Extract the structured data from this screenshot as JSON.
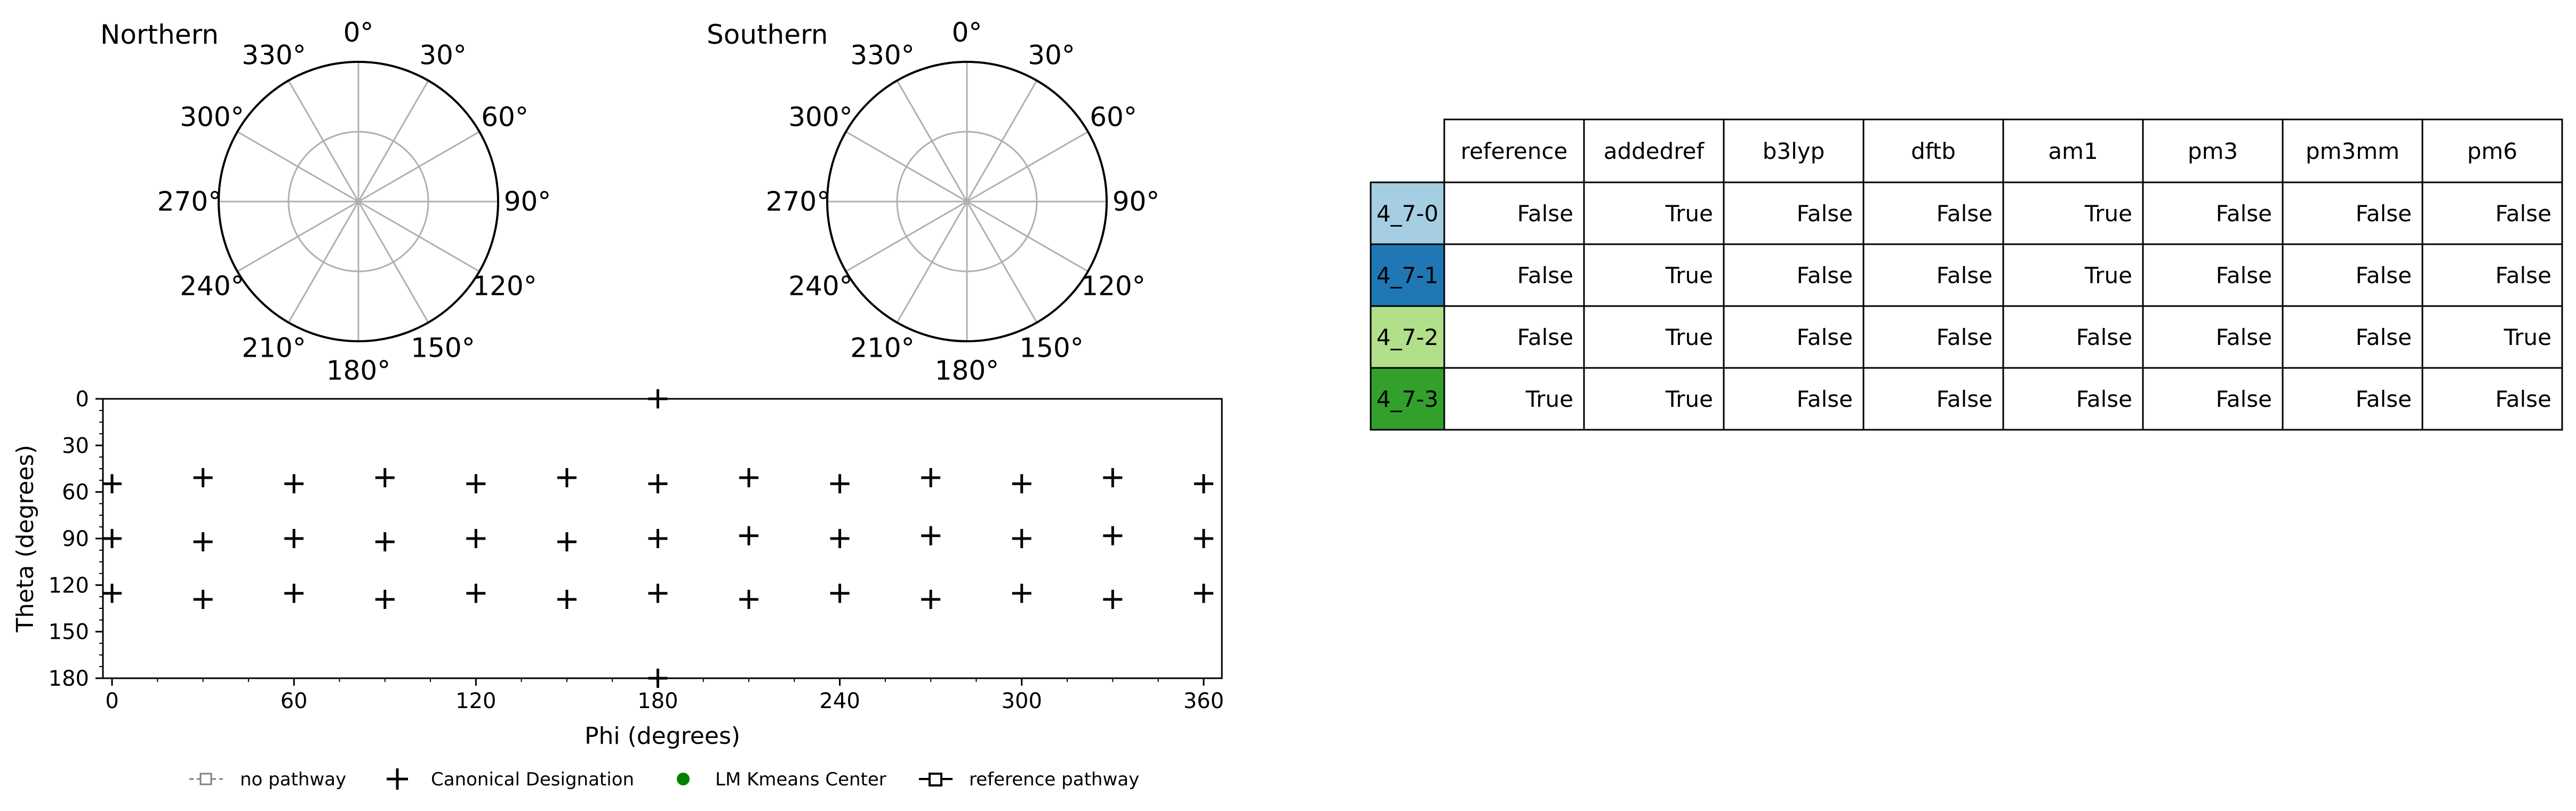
{
  "chart_data": [
    {
      "type": "polar",
      "title": "Northern",
      "angle_labels": [
        "0°",
        "30°",
        "60°",
        "90°",
        "120°",
        "150°",
        "180°",
        "210°",
        "240°",
        "270°",
        "300°",
        "330°"
      ],
      "rings": [
        0.5,
        1.0
      ],
      "points": []
    },
    {
      "type": "polar",
      "title": "Southern",
      "angle_labels": [
        "0°",
        "30°",
        "60°",
        "90°",
        "120°",
        "150°",
        "180°",
        "210°",
        "240°",
        "270°",
        "300°",
        "330°"
      ],
      "rings": [
        0.5,
        1.0
      ],
      "points": []
    },
    {
      "type": "scatter",
      "xlabel": "Phi (degrees)",
      "ylabel": "Theta (degrees)",
      "xlim": [
        -3,
        366
      ],
      "ylim": [
        0,
        180
      ],
      "y_inverted": true,
      "x_ticks": [
        0,
        60,
        120,
        180,
        240,
        300,
        360
      ],
      "y_ticks": [
        0,
        30,
        60,
        90,
        120,
        150,
        180
      ],
      "series": [
        {
          "name": "Canonical Designation",
          "marker": "plus",
          "points": [
            [
              180,
              0
            ],
            [
              180,
              180
            ],
            [
              0,
              54.7
            ],
            [
              30,
              50.8
            ],
            [
              60,
              54.7
            ],
            [
              90,
              50.8
            ],
            [
              120,
              54.7
            ],
            [
              150,
              50.8
            ],
            [
              180,
              54.7
            ],
            [
              210,
              50.8
            ],
            [
              240,
              54.7
            ],
            [
              270,
              50.8
            ],
            [
              300,
              54.7
            ],
            [
              330,
              50.8
            ],
            [
              360,
              54.7
            ],
            [
              0,
              90
            ],
            [
              30,
              92.1
            ],
            [
              60,
              90
            ],
            [
              90,
              92.1
            ],
            [
              120,
              90
            ],
            [
              150,
              92.1
            ],
            [
              180,
              90
            ],
            [
              210,
              88.2
            ],
            [
              240,
              90
            ],
            [
              270,
              88.2
            ],
            [
              300,
              90
            ],
            [
              330,
              88.2
            ],
            [
              360,
              90
            ],
            [
              0,
              125.3
            ],
            [
              30,
              129.2
            ],
            [
              60,
              125.3
            ],
            [
              90,
              129.2
            ],
            [
              120,
              125.3
            ],
            [
              150,
              129.2
            ],
            [
              180,
              125.3
            ],
            [
              210,
              129.2
            ],
            [
              240,
              125.3
            ],
            [
              270,
              129.2
            ],
            [
              300,
              125.3
            ],
            [
              330,
              129.2
            ],
            [
              360,
              125.3
            ]
          ]
        }
      ]
    },
    {
      "type": "table",
      "columns": [
        "reference",
        "addedref",
        "b3lyp",
        "dftb",
        "am1",
        "pm3",
        "pm3mm",
        "pm6"
      ],
      "rows": [
        {
          "label": "4_7-0",
          "color": "#a6cee3",
          "values": [
            "False",
            "True",
            "False",
            "False",
            "True",
            "False",
            "False",
            "False"
          ]
        },
        {
          "label": "4_7-1",
          "color": "#1f78b4",
          "values": [
            "False",
            "True",
            "False",
            "False",
            "True",
            "False",
            "False",
            "False"
          ]
        },
        {
          "label": "4_7-2",
          "color": "#b2df8a",
          "values": [
            "False",
            "True",
            "False",
            "False",
            "False",
            "False",
            "False",
            "True"
          ]
        },
        {
          "label": "4_7-3",
          "color": "#33a02c",
          "values": [
            "True",
            "True",
            "False",
            "False",
            "False",
            "False",
            "False",
            "False"
          ]
        }
      ]
    }
  ],
  "legend": {
    "placement": "bottom",
    "items": [
      {
        "label": "no pathway",
        "marker": "dashed-square",
        "color": "#808080"
      },
      {
        "label": "Canonical Designation",
        "marker": "plus",
        "color": "#000000"
      },
      {
        "label": "LM Kmeans Center",
        "marker": "circle",
        "color": "#008000"
      },
      {
        "label": "reference pathway",
        "marker": "solid-square",
        "color": "#000000"
      }
    ]
  }
}
